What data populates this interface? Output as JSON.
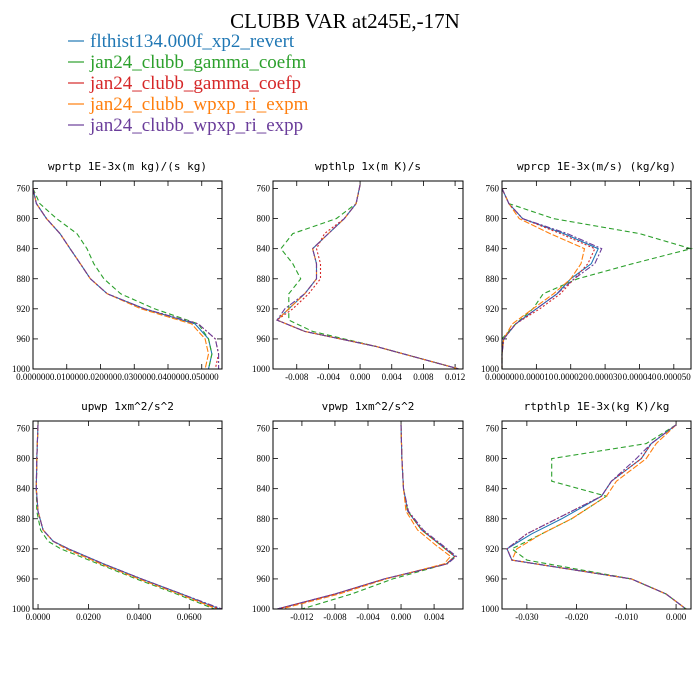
{
  "figure": {
    "title": "CLUBB VAR at245E,-17N",
    "legend": [
      {
        "label": "flthist134.000f_xp2_revert",
        "color": "#1f77b4",
        "dash": "none"
      },
      {
        "label": "jan24_clubb_gamma_coefm",
        "color": "#2ca02c",
        "dash": "5,3"
      },
      {
        "label": "jan24_clubb_gamma_coefp",
        "color": "#d62728",
        "dash": "2,2"
      },
      {
        "label": "jan24_clubb_wpxp_ri_expm",
        "color": "#ff7f0e",
        "dash": "6,2"
      },
      {
        "label": "jan24_clubb_wpxp_ri_expp",
        "color": "#6a3d9a",
        "dash": "6,2,2,2"
      }
    ]
  },
  "chart_data": [
    {
      "type": "line",
      "title": "wprtp  1E-3x(m kg)/(s kg)",
      "xlim": [
        0,
        0.056
      ],
      "ylim": [
        1000,
        750
      ],
      "xticks": [
        0,
        0.01,
        0.02,
        0.03,
        0.04,
        0.05
      ],
      "xtick_labels": [
        "0.000000",
        "0.010000",
        "0.020000",
        "0.030000",
        "0.040000",
        "0.050000"
      ],
      "yticks": [
        760,
        800,
        840,
        880,
        920,
        960,
        1000
      ],
      "y": [
        760,
        780,
        800,
        820,
        840,
        860,
        880,
        900,
        920,
        940,
        960,
        980,
        1000
      ],
      "series": [
        {
          "values": [
            0.0,
            0.001,
            0.004,
            0.008,
            0.011,
            0.014,
            0.017,
            0.022,
            0.033,
            0.048,
            0.052,
            0.053,
            0.052
          ]
        },
        {
          "values": [
            0.0,
            0.002,
            0.007,
            0.013,
            0.016,
            0.018,
            0.021,
            0.026,
            0.036,
            0.049,
            0.052,
            0.053,
            0.052
          ]
        },
        {
          "values": [
            0.0,
            0.001,
            0.004,
            0.008,
            0.011,
            0.014,
            0.017,
            0.022,
            0.033,
            0.049,
            0.054,
            0.055,
            0.054
          ]
        },
        {
          "values": [
            0.0,
            0.001,
            0.004,
            0.008,
            0.011,
            0.014,
            0.017,
            0.022,
            0.032,
            0.047,
            0.051,
            0.052,
            0.051
          ]
        },
        {
          "values": [
            0.0,
            0.001,
            0.004,
            0.008,
            0.011,
            0.014,
            0.017,
            0.022,
            0.033,
            0.049,
            0.054,
            0.055,
            0.055
          ]
        }
      ]
    },
    {
      "type": "line",
      "title": "wpthlp  1x(m K)/s",
      "xlim": [
        -0.011,
        0.013
      ],
      "ylim": [
        1000,
        750
      ],
      "xticks": [
        -0.008,
        -0.004,
        0.0,
        0.004,
        0.008,
        0.012
      ],
      "xtick_labels": [
        "-0.008",
        "-0.004",
        "0.000",
        "0.004",
        "0.008",
        "0.012"
      ],
      "yticks": [
        760,
        800,
        840,
        880,
        920,
        960,
        1000
      ],
      "y": [
        755,
        780,
        800,
        820,
        840,
        860,
        880,
        900,
        920,
        935,
        950,
        970,
        1000
      ],
      "series": [
        {
          "values": [
            0.0,
            -0.0005,
            -0.002,
            -0.004,
            -0.006,
            -0.0055,
            -0.0055,
            -0.007,
            -0.009,
            -0.0105,
            -0.007,
            0.002,
            0.0125
          ]
        },
        {
          "values": [
            0.0,
            -0.0005,
            -0.003,
            -0.0085,
            -0.01,
            -0.0085,
            -0.0075,
            -0.009,
            -0.009,
            -0.009,
            -0.006,
            0.002,
            0.0125
          ]
        },
        {
          "values": [
            0.0,
            -0.0005,
            -0.002,
            -0.0045,
            -0.0055,
            -0.005,
            -0.005,
            -0.0065,
            -0.0085,
            -0.0105,
            -0.007,
            0.002,
            0.0125
          ]
        },
        {
          "values": [
            0.0,
            -0.0005,
            -0.002,
            -0.004,
            -0.006,
            -0.0055,
            -0.0055,
            -0.007,
            -0.009,
            -0.0105,
            -0.007,
            0.002,
            0.0125
          ]
        },
        {
          "values": [
            0.0,
            -0.0005,
            -0.002,
            -0.004,
            -0.006,
            -0.0055,
            -0.0055,
            -0.007,
            -0.0095,
            -0.0105,
            -0.007,
            0.002,
            0.0125
          ]
        }
      ]
    },
    {
      "type": "line",
      "title": "wprcp  1E-3x(m/s) (kg/kg)",
      "xlim": [
        0,
        5.5e-05
      ],
      "ylim": [
        1000,
        750
      ],
      "xticks": [
        0,
        1e-05,
        2e-05,
        3e-05,
        4e-05,
        5e-05
      ],
      "xtick_labels": [
        "0.000000",
        "0.000010",
        "0.000020",
        "0.000030",
        "0.000040",
        "0.000050"
      ],
      "yticks": [
        760,
        800,
        840,
        880,
        920,
        960,
        1000
      ],
      "y": [
        760,
        780,
        800,
        820,
        840,
        860,
        880,
        900,
        920,
        940,
        960,
        980,
        1000
      ],
      "series": [
        {
          "values": [
            0.0,
            2e-06,
            6e-06,
            1.8e-05,
            2.8e-05,
            2.6e-05,
            2e-05,
            1.6e-05,
            1e-05,
            4e-06,
            5e-07,
            0.0,
            0.0
          ]
        },
        {
          "values": [
            0.0,
            2e-06,
            1.5e-05,
            4e-05,
            5.5e-05,
            3.8e-05,
            2.2e-05,
            1.2e-05,
            9e-06,
            4e-06,
            0.0,
            0.0,
            0.0
          ]
        },
        {
          "values": [
            0.0,
            2e-06,
            6e-06,
            1.7e-05,
            2.7e-05,
            2.5e-05,
            2.1e-05,
            1.7e-05,
            1.1e-05,
            4e-06,
            5e-07,
            0.0,
            0.0
          ]
        },
        {
          "values": [
            0.0,
            2e-06,
            5e-06,
            1.4e-05,
            2.4e-05,
            2.3e-05,
            2e-05,
            1.5e-05,
            9e-06,
            3e-06,
            5e-07,
            0.0,
            0.0
          ]
        },
        {
          "values": [
            0.0,
            2e-06,
            6e-06,
            1.9e-05,
            2.9e-05,
            2.7e-05,
            2.1e-05,
            1.6e-05,
            1e-05,
            4e-06,
            5e-07,
            0.0,
            0.0
          ]
        }
      ]
    },
    {
      "type": "line",
      "title": "upwp  1xm^2/s^2",
      "xlim": [
        -0.002,
        0.073
      ],
      "ylim": [
        1000,
        750
      ],
      "xticks": [
        0,
        0.02,
        0.04,
        0.06
      ],
      "xtick_labels": [
        "0.0000",
        "0.0200",
        "0.0400",
        "0.0600"
      ],
      "yticks": [
        760,
        800,
        840,
        880,
        920,
        960,
        1000
      ],
      "y": [
        755,
        800,
        840,
        870,
        895,
        910,
        920,
        940,
        960,
        980,
        1000
      ],
      "series": [
        {
          "values": [
            0.0,
            -0.0005,
            -0.0007,
            0.0,
            0.002,
            0.006,
            0.012,
            0.026,
            0.041,
            0.057,
            0.072
          ]
        },
        {
          "values": [
            0.0,
            -0.0005,
            -0.0007,
            -0.0005,
            0.001,
            0.004,
            0.009,
            0.024,
            0.039,
            0.055,
            0.07
          ]
        },
        {
          "values": [
            0.0,
            -0.0005,
            -0.0007,
            0.0,
            0.002,
            0.006,
            0.012,
            0.026,
            0.041,
            0.057,
            0.072
          ]
        },
        {
          "values": [
            0.0,
            -0.0005,
            -0.0007,
            0.0,
            0.002,
            0.006,
            0.011,
            0.025,
            0.04,
            0.056,
            0.071
          ]
        },
        {
          "values": [
            0.0,
            -0.0005,
            -0.0007,
            0.0,
            0.002,
            0.006,
            0.012,
            0.026,
            0.041,
            0.057,
            0.073
          ]
        }
      ]
    },
    {
      "type": "line",
      "title": "vpwp  1xm^2/s^2",
      "xlim": [
        -0.0155,
        0.0075
      ],
      "ylim": [
        1000,
        750
      ],
      "xticks": [
        -0.012,
        -0.008,
        -0.004,
        0.0,
        0.004
      ],
      "xtick_labels": [
        "-0.012",
        "-0.008",
        "-0.004",
        "0.000",
        "0.004"
      ],
      "yticks": [
        760,
        800,
        840,
        880,
        920,
        960,
        1000
      ],
      "y": [
        755,
        800,
        840,
        870,
        895,
        915,
        930,
        940,
        960,
        980,
        1000
      ],
      "series": [
        {
          "values": [
            0.0,
            0.0001,
            0.0003,
            0.0008,
            0.0025,
            0.0048,
            0.0065,
            0.0055,
            -0.002,
            -0.008,
            -0.015
          ]
        },
        {
          "values": [
            0.0,
            0.0001,
            0.0003,
            0.0008,
            0.0025,
            0.0048,
            0.0065,
            0.0055,
            -0.001,
            -0.006,
            -0.012
          ]
        },
        {
          "values": [
            0.0,
            0.0001,
            0.0003,
            0.0008,
            0.0025,
            0.0048,
            0.0065,
            0.0055,
            -0.002,
            -0.008,
            -0.015
          ]
        },
        {
          "values": [
            0.0,
            0.0001,
            0.0003,
            0.0006,
            0.002,
            0.0042,
            0.006,
            0.0052,
            -0.0018,
            -0.0075,
            -0.0145
          ]
        },
        {
          "values": [
            0.0,
            0.0001,
            0.0003,
            0.0009,
            0.0027,
            0.005,
            0.0067,
            0.0056,
            -0.002,
            -0.008,
            -0.015
          ]
        }
      ]
    },
    {
      "type": "line",
      "title": "rtpthlp  1E-3x(kg K)/kg",
      "xlim": [
        -0.035,
        0.003
      ],
      "ylim": [
        1000,
        750
      ],
      "xticks": [
        -0.03,
        -0.02,
        -0.01,
        0.0
      ],
      "xtick_labels": [
        "-0.030",
        "-0.020",
        "-0.010",
        "0.000"
      ],
      "yticks": [
        760,
        800,
        840,
        880,
        920,
        960,
        1000
      ],
      "y": [
        755,
        780,
        800,
        830,
        850,
        880,
        900,
        920,
        935,
        960,
        980,
        1000
      ],
      "series": [
        {
          "values": [
            0.0,
            -0.005,
            -0.007,
            -0.013,
            -0.015,
            -0.023,
            -0.029,
            -0.034,
            -0.033,
            -0.009,
            -0.002,
            0.002
          ]
        },
        {
          "values": [
            0.0,
            -0.006,
            -0.025,
            -0.025,
            -0.014,
            -0.021,
            -0.027,
            -0.033,
            -0.03,
            -0.009,
            -0.002,
            0.002
          ]
        },
        {
          "values": [
            0.0,
            -0.005,
            -0.007,
            -0.013,
            -0.015,
            -0.024,
            -0.03,
            -0.034,
            -0.033,
            -0.009,
            -0.002,
            0.002
          ]
        },
        {
          "values": [
            0.0,
            -0.004,
            -0.006,
            -0.012,
            -0.014,
            -0.021,
            -0.027,
            -0.032,
            -0.033,
            -0.009,
            -0.002,
            0.002
          ]
        },
        {
          "values": [
            0.0,
            -0.005,
            -0.008,
            -0.013,
            -0.015,
            -0.024,
            -0.03,
            -0.034,
            -0.033,
            -0.009,
            -0.002,
            0.002
          ]
        }
      ]
    }
  ]
}
